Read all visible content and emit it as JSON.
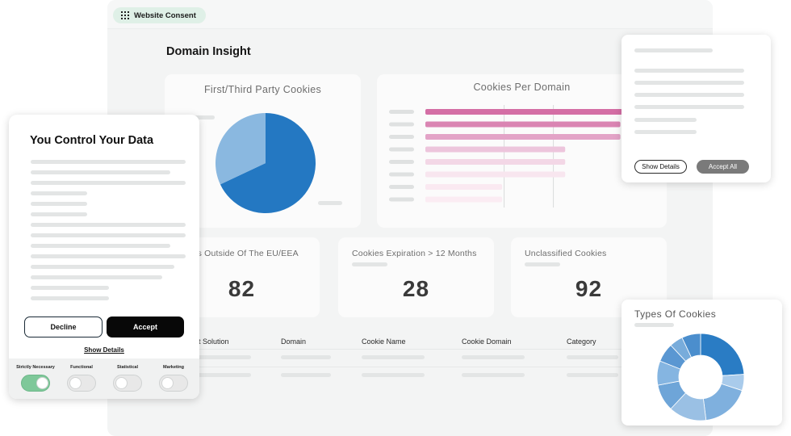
{
  "header": {
    "chip_label": "Website Consent",
    "page_title": "Domain Insight"
  },
  "cards": {
    "first_third": {
      "title": "First/Third Party Cookies"
    },
    "per_domain": {
      "title": "Cookies Per Domain"
    }
  },
  "kpis": [
    {
      "title": "ies Outside Of The EU/EEA",
      "value": "82"
    },
    {
      "title": "Cookies Expiration > 12 Months",
      "value": "28"
    },
    {
      "title": "Unclassified Cookies",
      "value": "92"
    }
  ],
  "table": {
    "columns": [
      "nt Solution",
      "Domain",
      "Cookie Name",
      "Cookie Domain",
      "Category"
    ]
  },
  "consent": {
    "title": "You Control Your Data",
    "decline_label": "Decline",
    "accept_label": "Accept",
    "show_details_label": "Show Details",
    "toggles": [
      {
        "label": "Strictly Necessary",
        "on": true
      },
      {
        "label": "Functional",
        "on": false
      },
      {
        "label": "Statistical",
        "on": false
      },
      {
        "label": "Marketing",
        "on": false
      }
    ]
  },
  "popup": {
    "show_details_label": "Show Details",
    "accept_all_label": "Accept All"
  },
  "types": {
    "title": "Types Of Cookies"
  },
  "chart_data": [
    {
      "type": "pie",
      "title": "First/Third Party Cookies",
      "values": [
        68,
        32
      ],
      "colors": [
        "#2478c2",
        "#8ab8e0"
      ]
    },
    {
      "type": "bar",
      "title": "Cookies Per Domain",
      "orientation": "horizontal",
      "values": [
        100,
        99,
        99,
        71,
        71,
        71,
        39,
        39
      ],
      "colors": [
        "#d46ea5",
        "#da85b3",
        "#e3a3c7",
        "#edc5dc",
        "#f3d7e6",
        "#f8e6ef",
        "#fae9f1",
        "#fbecf3"
      ]
    },
    {
      "type": "pie",
      "title": "Types Of Cookies",
      "donut": true,
      "values": [
        24,
        6,
        18,
        14,
        10,
        9,
        7,
        5,
        7
      ],
      "colors": [
        "#2a7cc4",
        "#a9cbeb",
        "#7fb0de",
        "#9ac0e4",
        "#6ea5d8",
        "#85b5e1",
        "#5a97d2",
        "#78acdb",
        "#4b8ecd"
      ]
    }
  ]
}
